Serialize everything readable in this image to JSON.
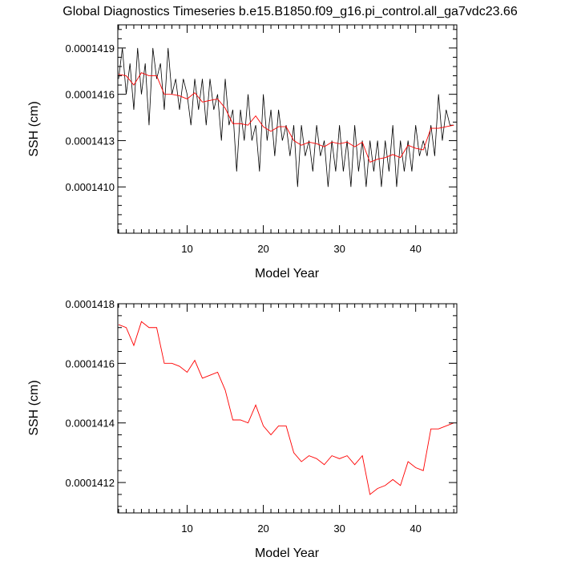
{
  "title": "Global Diagnostics Timeseries b.e15.B1850.f09_g16.pi_control.all_ga7vdc23.66",
  "chart_data": [
    {
      "type": "line",
      "xlabel": "Model Year",
      "ylabel": "SSH (cm)",
      "xlim": [
        0.9,
        45.4
      ],
      "ylim": [
        0.0001407,
        0.00014205
      ],
      "x_ticks": [
        {
          "label": "10",
          "value": 10
        },
        {
          "label": "20",
          "value": 20
        },
        {
          "label": "30",
          "value": 30
        },
        {
          "label": "40",
          "value": 40
        }
      ],
      "y_ticks": [
        {
          "label": "0.0001410",
          "value": 0.000141
        },
        {
          "label": "0.0001413",
          "value": 0.0001413
        },
        {
          "label": "0.0001416",
          "value": 0.0001416
        },
        {
          "label": "0.0001419",
          "value": 0.0001419
        }
      ],
      "series": [
        {
          "kind": "monthly",
          "color": "#000000",
          "x": [
            1,
            1.5,
            2,
            2.5,
            3,
            3.5,
            4,
            4.5,
            5,
            5.5,
            6,
            6.5,
            7,
            7.5,
            8,
            8.5,
            9,
            9.5,
            10,
            10.5,
            11,
            11.5,
            12,
            12.5,
            13,
            13.5,
            14,
            14.5,
            15,
            15.5,
            16,
            16.5,
            17,
            17.5,
            18,
            18.5,
            19,
            19.5,
            20,
            20.5,
            21,
            21.5,
            22,
            22.5,
            23,
            23.5,
            24,
            24.5,
            25,
            25.5,
            26,
            26.5,
            27,
            27.5,
            28,
            28.5,
            29,
            29.5,
            30,
            30.5,
            31,
            31.5,
            32,
            32.5,
            33,
            33.5,
            34,
            34.5,
            35,
            35.5,
            36,
            36.5,
            37,
            37.5,
            38,
            38.5,
            39,
            39.5,
            40,
            40.5,
            41,
            41.5,
            42,
            42.5,
            43,
            43.5,
            44,
            44.5,
            45
          ],
          "values": [
            0.0001417,
            0.0001419,
            0.0001416,
            0.0001418,
            0.0001415,
            0.0001419,
            0.0001416,
            0.0001418,
            0.0001414,
            0.0001419,
            0.0001417,
            0.0001418,
            0.0001415,
            0.0001419,
            0.0001416,
            0.0001417,
            0.0001415,
            0.0001417,
            0.0001416,
            0.0001414,
            0.0001417,
            0.0001415,
            0.0001417,
            0.0001414,
            0.0001417,
            0.0001415,
            0.0001416,
            0.0001413,
            0.0001417,
            0.0001414,
            0.0001415,
            0.0001411,
            0.0001415,
            0.0001413,
            0.0001416,
            0.0001413,
            0.0001414,
            0.0001411,
            0.0001416,
            0.0001413,
            0.0001415,
            0.0001412,
            0.0001415,
            0.0001413,
            0.0001414,
            0.0001412,
            0.0001414,
            0.000141,
            0.0001414,
            0.0001412,
            0.0001413,
            0.0001411,
            0.0001414,
            0.0001412,
            0.0001413,
            0.000141,
            0.0001413,
            0.0001411,
            0.0001414,
            0.0001411,
            0.0001413,
            0.000141,
            0.0001414,
            0.0001411,
            0.0001413,
            0.000141,
            0.0001413,
            0.0001411,
            0.0001413,
            0.000141,
            0.0001413,
            0.0001411,
            0.0001414,
            0.000141,
            0.0001413,
            0.0001411,
            0.0001413,
            0.0001411,
            0.0001414,
            0.0001412,
            0.0001413,
            0.0001412,
            0.0001414,
            0.0001412,
            0.0001416,
            0.0001413,
            0.0001415,
            0.0001414,
            0.0001414
          ]
        },
        {
          "kind": "annual",
          "color": "#ff0000",
          "x": [
            1,
            2,
            3,
            4,
            5,
            6,
            7,
            8,
            9,
            10,
            11,
            12,
            13,
            14,
            15,
            16,
            17,
            18,
            19,
            20,
            21,
            22,
            23,
            24,
            25,
            26,
            27,
            28,
            29,
            30,
            31,
            32,
            33,
            34,
            35,
            36,
            37,
            38,
            39,
            40,
            41,
            42,
            43,
            44,
            45
          ],
          "values": [
            0.00014173,
            0.00014172,
            0.00014166,
            0.00014174,
            0.00014172,
            0.00014172,
            0.0001416,
            0.0001416,
            0.00014159,
            0.00014157,
            0.00014161,
            0.00014155,
            0.00014156,
            0.00014157,
            0.00014151,
            0.00014141,
            0.00014141,
            0.0001414,
            0.00014146,
            0.00014139,
            0.00014136,
            0.00014139,
            0.00014139,
            0.0001413,
            0.00014127,
            0.00014129,
            0.00014128,
            0.00014126,
            0.00014129,
            0.00014128,
            0.00014129,
            0.00014126,
            0.00014129,
            0.00014116,
            0.00014118,
            0.00014119,
            0.00014121,
            0.00014119,
            0.00014127,
            0.00014125,
            0.00014124,
            0.00014138,
            0.00014138,
            0.00014139,
            0.0001414
          ]
        }
      ]
    },
    {
      "type": "line",
      "xlabel": "Model Year",
      "ylabel": "SSH (cm)",
      "xlim": [
        0.9,
        45.4
      ],
      "ylim": [
        0.000141098,
        0.0001418
      ],
      "x_ticks": [
        {
          "label": "10",
          "value": 10
        },
        {
          "label": "20",
          "value": 20
        },
        {
          "label": "30",
          "value": 30
        },
        {
          "label": "40",
          "value": 40
        }
      ],
      "y_ticks": [
        {
          "label": "0.0001412",
          "value": 0.0001412
        },
        {
          "label": "0.0001414",
          "value": 0.0001414
        },
        {
          "label": "0.0001416",
          "value": 0.0001416
        },
        {
          "label": "0.0001418",
          "value": 0.0001418
        }
      ],
      "series": [
        {
          "kind": "annual",
          "color": "#ff0000",
          "x": [
            1,
            2,
            3,
            4,
            5,
            6,
            7,
            8,
            9,
            10,
            11,
            12,
            13,
            14,
            15,
            16,
            17,
            18,
            19,
            20,
            21,
            22,
            23,
            24,
            25,
            26,
            27,
            28,
            29,
            30,
            31,
            32,
            33,
            34,
            35,
            36,
            37,
            38,
            39,
            40,
            41,
            42,
            43,
            44,
            45
          ],
          "values": [
            0.00014173,
            0.00014172,
            0.00014166,
            0.00014174,
            0.00014172,
            0.00014172,
            0.0001416,
            0.0001416,
            0.00014159,
            0.00014157,
            0.00014161,
            0.00014155,
            0.00014156,
            0.00014157,
            0.00014151,
            0.00014141,
            0.00014141,
            0.0001414,
            0.00014146,
            0.00014139,
            0.00014136,
            0.00014139,
            0.00014139,
            0.0001413,
            0.00014127,
            0.00014129,
            0.00014128,
            0.00014126,
            0.00014129,
            0.00014128,
            0.00014129,
            0.00014126,
            0.00014129,
            0.00014116,
            0.00014118,
            0.00014119,
            0.00014121,
            0.00014119,
            0.00014127,
            0.00014125,
            0.00014124,
            0.00014138,
            0.00014138,
            0.00014139,
            0.0001414
          ]
        }
      ]
    }
  ]
}
